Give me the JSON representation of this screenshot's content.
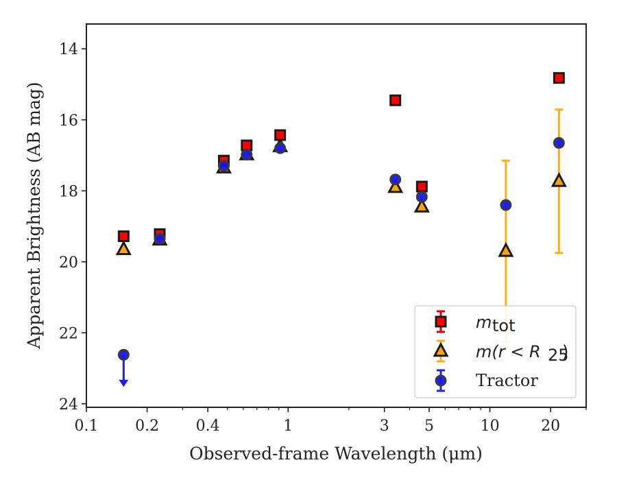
{
  "chart_data": {
    "type": "scatter",
    "xlabel": "Observed-frame Wavelength (μm)",
    "ylabel": "Apparent Brightness (AB mag)",
    "xscale": "log",
    "xlim": [
      0.1,
      30
    ],
    "ylim": [
      24.1,
      13.3
    ],
    "y_inverted": true,
    "x_major_ticks": [
      0.1,
      0.2,
      0.4,
      1,
      3,
      5,
      10,
      20
    ],
    "x_tick_labels": [
      "0.1",
      "0.2",
      "0.4",
      "1",
      "3",
      "5",
      "10",
      "20"
    ],
    "y_ticks": [
      14,
      16,
      18,
      20,
      22,
      24
    ],
    "y_tick_labels": [
      "14",
      "16",
      "18",
      "20",
      "22",
      "24"
    ],
    "legend_position": "lower-right",
    "series": [
      {
        "name": "m_tot",
        "label_main": "m",
        "label_sub": "tot",
        "marker": "square",
        "face_color": "#ff0000",
        "edge_color": "#1a1a1a",
        "error_color": "#e00000",
        "x": [
          0.153,
          0.231,
          0.48,
          0.623,
          0.913,
          3.4,
          4.6,
          22.0
        ],
        "y": [
          19.28,
          19.22,
          17.15,
          16.72,
          16.43,
          15.45,
          17.88,
          14.82
        ]
      },
      {
        "name": "m(r < R25)",
        "label_main": "m(r < R",
        "label_sub": "25",
        "label_end": ")",
        "marker": "triangle",
        "face_color": "#ffa500",
        "edge_color": "#1a1a1a",
        "error_color": "#ffae1a",
        "x": [
          0.153,
          0.231,
          0.48,
          0.623,
          0.913,
          3.4,
          4.6,
          12.0,
          22.0
        ],
        "y": [
          19.65,
          19.38,
          17.35,
          16.98,
          16.75,
          17.9,
          18.45,
          19.7,
          17.73
        ],
        "yerr_low": [
          null,
          null,
          null,
          null,
          null,
          null,
          null,
          2.55,
          2.02
        ],
        "yerr_high": [
          null,
          null,
          null,
          null,
          null,
          null,
          null,
          2.55,
          2.02
        ]
      },
      {
        "name": "Tractor",
        "marker": "circle",
        "face_color": "#1414ff",
        "edge_color": "#3a3a3a",
        "error_color": "#2020ee",
        "x": [
          0.153,
          0.231,
          0.48,
          0.623,
          0.913,
          3.4,
          4.6,
          12.0,
          22.0
        ],
        "y": [
          22.62,
          19.35,
          17.3,
          16.98,
          16.8,
          17.68,
          18.17,
          18.4,
          16.65
        ],
        "upper_limit": [
          true,
          false,
          false,
          false,
          false,
          false,
          false,
          false,
          false
        ]
      }
    ],
    "legend": {
      "tractor_label": "Tractor"
    }
  }
}
